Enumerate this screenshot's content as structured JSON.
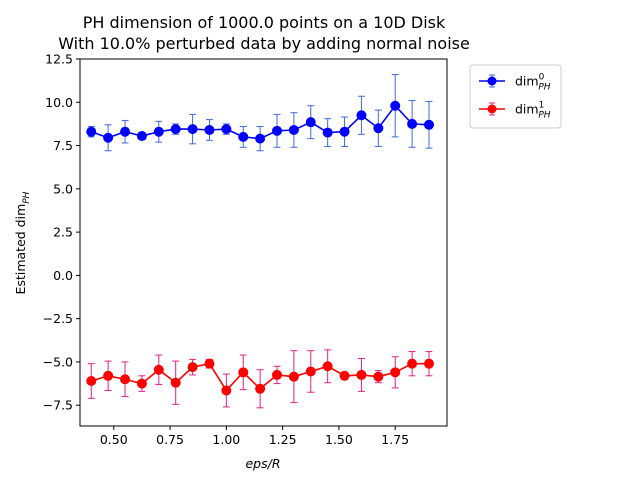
{
  "chart_data": {
    "type": "line",
    "title_lines": [
      "PH dimension of 1000.0 points on a 10D Disk",
      "With 10.0% perturbed data by adding normal noise"
    ],
    "xlabel": "eps/R",
    "ylabel": "Estimated dim",
    "ylabel_sub": "PH",
    "xlim": [
      0.35,
      1.98
    ],
    "ylim": [
      -8.7,
      12.5
    ],
    "x_ticks": [
      0.5,
      0.75,
      1.0,
      1.25,
      1.5,
      1.75
    ],
    "x_tick_labels": [
      "0.50",
      "0.75",
      "1.00",
      "1.25",
      "1.50",
      "1.75"
    ],
    "y_ticks": [
      -7.5,
      -5.0,
      -2.5,
      0.0,
      2.5,
      5.0,
      7.5,
      10.0,
      12.5
    ],
    "y_tick_labels": [
      "−7.5",
      "−5.0",
      "−2.5",
      "0.0",
      "2.5",
      "5.0",
      "7.5",
      "10.0",
      "12.5"
    ],
    "legend_position": "outside-top-right",
    "x": [
      0.4,
      0.475,
      0.55,
      0.625,
      0.7,
      0.775,
      0.85,
      0.925,
      1.0,
      1.075,
      1.15,
      1.225,
      1.3,
      1.375,
      1.45,
      1.525,
      1.6,
      1.675,
      1.75,
      1.825,
      1.9
    ],
    "series": [
      {
        "name_base": "dim",
        "name_sup": "0",
        "name_sub": "PH",
        "color": "#0000ff",
        "err_color": "#4169e1",
        "values": [
          8.3,
          7.95,
          8.3,
          8.05,
          8.3,
          8.45,
          8.45,
          8.4,
          8.45,
          8.0,
          7.9,
          8.35,
          8.4,
          8.85,
          8.25,
          8.3,
          9.25,
          8.5,
          9.8,
          8.75,
          8.7
        ],
        "err": [
          0.3,
          0.75,
          0.65,
          0.2,
          0.6,
          0.3,
          0.85,
          0.6,
          0.3,
          0.6,
          0.7,
          0.95,
          1.0,
          0.95,
          0.8,
          0.85,
          1.1,
          1.05,
          1.8,
          1.35,
          1.35
        ]
      },
      {
        "name_base": "dim",
        "name_sup": "1",
        "name_sub": "PH",
        "color": "#ff0000",
        "err_color": "#e0218a",
        "values": [
          -6.1,
          -5.8,
          -6.0,
          -6.25,
          -5.45,
          -6.2,
          -5.3,
          -5.1,
          -6.65,
          -5.6,
          -6.55,
          -5.75,
          -5.85,
          -5.55,
          -5.25,
          -5.8,
          -5.75,
          -5.85,
          -5.6,
          -5.1,
          -5.1
        ],
        "err": [
          1.0,
          0.85,
          1.0,
          0.45,
          0.85,
          1.25,
          0.45,
          0.25,
          0.95,
          1.0,
          1.1,
          0.5,
          1.5,
          1.2,
          0.95,
          0.2,
          0.95,
          0.35,
          0.9,
          0.7,
          0.7
        ]
      }
    ]
  }
}
